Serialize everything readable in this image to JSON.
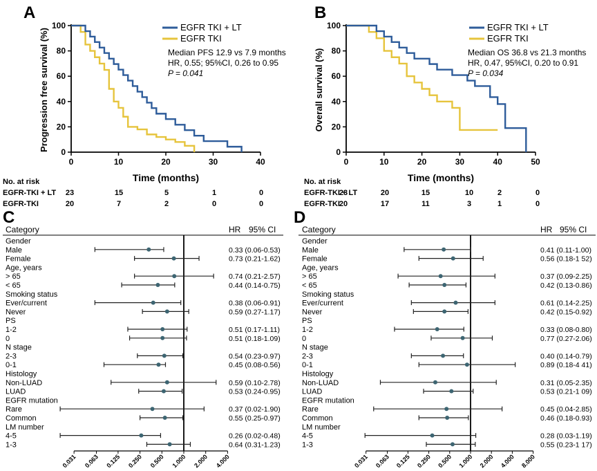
{
  "colors": {
    "lt": "#2e5c9a",
    "tki": "#e6c43c",
    "dot": "#3d6572",
    "axis": "#000000"
  },
  "panels": {
    "A": {
      "label": "A",
      "ylabel": "Progression free survival (%)",
      "xlabel": "Time (months)",
      "legend": [
        "EGFR TKI + LT",
        "EGFR TKI"
      ],
      "annotation": [
        "Median PFS 12.9 vs 7.9 months",
        "HR, 0.55; 95%CI, 0.26 to 0.95",
        "P = 0.041"
      ],
      "xticks": [
        "0",
        "10",
        "20",
        "30",
        "40"
      ],
      "yticks": [
        "0",
        "20",
        "40",
        "60",
        "80",
        "100"
      ],
      "risk_title": "No. at risk",
      "risk_rows": [
        {
          "label": "EGFR-TKI + LT",
          "values": [
            "23",
            "15",
            "5",
            "1",
            "0"
          ]
        },
        {
          "label": "EGFR-TKI",
          "values": [
            "20",
            "7",
            "2",
            "0",
            "0"
          ]
        }
      ]
    },
    "B": {
      "label": "B",
      "ylabel": "Overall survival (%)",
      "xlabel": "Time (months)",
      "legend": [
        "EGFR TKI + LT",
        "EGFR TKI"
      ],
      "annotation": [
        "Median OS 36.8 vs 21.3 months",
        "HR, 0.47, 95%CI, 0.20 to 0.91",
        "P = 0.034"
      ],
      "xticks": [
        "0",
        "10",
        "20",
        "30",
        "40",
        "50"
      ],
      "yticks": [
        "0",
        "20",
        "40",
        "60",
        "80",
        "100"
      ],
      "risk_title": "No. at risk",
      "risk_rows": [
        {
          "label": "EGFR-TKI + LT",
          "values": [
            "23",
            "20",
            "15",
            "10",
            "2",
            "0"
          ]
        },
        {
          "label": "EGFR-TKI",
          "values": [
            "20",
            "17",
            "11",
            "3",
            "1",
            "0"
          ]
        }
      ]
    },
    "C": {
      "label": "C",
      "header": {
        "category": "Category",
        "hr": "HR",
        "ci": "95% CI"
      }
    },
    "D": {
      "label": "D",
      "header": {
        "category": "Category",
        "hr": "HR",
        "ci": "95% CI"
      }
    }
  },
  "chart_data": [
    {
      "panel": "A",
      "type": "line",
      "xlim": [
        0,
        40
      ],
      "ylim": [
        0,
        100
      ],
      "series": [
        {
          "name": "EGFR TKI + LT",
          "color_key": "lt",
          "x": [
            0,
            2,
            3,
            4,
            5,
            6,
            7,
            8,
            9,
            10,
            11,
            12,
            13,
            14,
            15,
            16,
            17,
            18,
            20,
            22,
            24,
            26,
            28,
            30,
            33,
            36
          ],
          "y": [
            100,
            100,
            95.6,
            91.3,
            87,
            82.6,
            78.3,
            73.9,
            69.6,
            65.2,
            60.9,
            56.5,
            52.2,
            47.8,
            43.5,
            39.1,
            34.8,
            30.4,
            26.1,
            21.7,
            17.4,
            13,
            8.7,
            8.7,
            4.3,
            0
          ]
        },
        {
          "name": "EGFR TKI",
          "color_key": "tki",
          "x": [
            0,
            2,
            3,
            4,
            5,
            6,
            7,
            8,
            9,
            10,
            11,
            12,
            14,
            16,
            18,
            20,
            22,
            24,
            26
          ],
          "y": [
            100,
            95,
            85,
            80,
            75,
            70,
            65,
            50,
            40,
            35,
            28,
            20,
            18,
            14,
            12,
            10,
            8,
            5,
            0
          ]
        }
      ]
    },
    {
      "panel": "B",
      "type": "line",
      "xlim": [
        0,
        50
      ],
      "ylim": [
        0,
        100
      ],
      "series": [
        {
          "name": "EGFR TKI + LT",
          "color_key": "lt",
          "x": [
            0,
            5,
            8,
            10,
            12,
            14,
            16,
            18,
            20,
            22,
            24,
            26,
            28,
            30,
            32,
            34,
            36,
            38,
            40,
            42,
            47,
            47.5
          ],
          "y": [
            100,
            100,
            95.6,
            91.3,
            87,
            82.6,
            78.3,
            73.9,
            73.9,
            69.6,
            65.2,
            65.2,
            60.9,
            60.9,
            56.5,
            52.2,
            52.2,
            43.5,
            38,
            19,
            19,
            0
          ]
        },
        {
          "name": "EGFR TKI",
          "color_key": "tki",
          "x": [
            0,
            4,
            6,
            8,
            10,
            12,
            14,
            16,
            18,
            20,
            22,
            24,
            26,
            28,
            30,
            32,
            35,
            40
          ],
          "y": [
            100,
            100,
            95,
            90,
            80,
            75,
            70,
            60,
            55,
            50,
            45,
            40,
            40,
            35,
            17.5,
            17.5,
            17.5,
            17.5
          ]
        }
      ]
    },
    {
      "panel": "C",
      "type": "forest",
      "xscale": "log2",
      "xticks": [
        "0.031",
        "0.063",
        "0.125",
        "0.250",
        "0.500",
        "1.000",
        "2.000",
        "4.000"
      ],
      "rows": [
        {
          "label": "Gender",
          "header": true
        },
        {
          "label": "Male",
          "hr": 0.33,
          "lo": 0.06,
          "hi": 0.53,
          "text": "0.33  (0.06-0.53)"
        },
        {
          "label": "Female",
          "hr": 0.73,
          "lo": 0.21,
          "hi": 1.62,
          "text": "0.73  (0.21-1.62)"
        },
        {
          "label": "Age, years",
          "header": true
        },
        {
          "label": "> 65",
          "hr": 0.74,
          "lo": 0.21,
          "hi": 2.57,
          "text": "0.74  (0.21-2.57)"
        },
        {
          "label": "< 65",
          "hr": 0.44,
          "lo": 0.14,
          "hi": 0.75,
          "text": "0.44  (0.14-0.75)"
        },
        {
          "label": "Smoking status",
          "header": true
        },
        {
          "label": "Ever/current",
          "hr": 0.38,
          "lo": 0.06,
          "hi": 0.91,
          "text": "0.38  (0.06-0.91)"
        },
        {
          "label": "Never",
          "hr": 0.59,
          "lo": 0.27,
          "hi": 1.17,
          "text": "0.59  (0.27-1.17)"
        },
        {
          "label": "PS",
          "header": true
        },
        {
          "label": "1-2",
          "hr": 0.51,
          "lo": 0.17,
          "hi": 1.11,
          "text": "0.51  (0.17-1.11)"
        },
        {
          "label": "0",
          "hr": 0.51,
          "lo": 0.18,
          "hi": 1.09,
          "text": "0.51  (0.18-1.09)"
        },
        {
          "label": "N stage",
          "header": true
        },
        {
          "label": "2-3",
          "hr": 0.54,
          "lo": 0.23,
          "hi": 0.97,
          "text": "0.54  (0.23-0.97)"
        },
        {
          "label": "0-1",
          "hr": 0.45,
          "lo": 0.08,
          "hi": 0.56,
          "text": "0.45  (0.08-0.56)"
        },
        {
          "label": "Histology",
          "header": true
        },
        {
          "label": "Non-LUAD",
          "hr": 0.59,
          "lo": 0.1,
          "hi": 2.78,
          "text": "0.59  (0.10-2.78)"
        },
        {
          "label": "LUAD",
          "hr": 0.53,
          "lo": 0.24,
          "hi": 0.95,
          "text": "0.53  (0.24-0.95)"
        },
        {
          "label": "EGFR mutation",
          "header": true
        },
        {
          "label": "Rare",
          "hr": 0.37,
          "lo": 0.02,
          "hi": 1.9,
          "text": "0.37  (0.02-1.90)"
        },
        {
          "label": "Common",
          "hr": 0.55,
          "lo": 0.25,
          "hi": 0.97,
          "text": "0.55  (0.25-0.97)"
        },
        {
          "label": "LM number",
          "header": true
        },
        {
          "label": "4-5",
          "hr": 0.26,
          "lo": 0.02,
          "hi": 0.48,
          "text": "0.26  (0.02-0.48)"
        },
        {
          "label": "1-3",
          "hr": 0.64,
          "lo": 0.31,
          "hi": 1.23,
          "text": "0.64  (0.31-1.23)"
        }
      ]
    },
    {
      "panel": "D",
      "type": "forest",
      "xscale": "log2",
      "xticks": [
        "0.031",
        "0.063",
        "0.125",
        "0.250",
        "0.500",
        "1.000",
        "2.000",
        "4.000",
        "8.000"
      ],
      "rows": [
        {
          "label": "Gender",
          "header": true
        },
        {
          "label": "Male",
          "hr": 0.41,
          "lo": 0.11,
          "hi": 1.0,
          "text": "0.41  (0.11-1.00)"
        },
        {
          "label": "Female",
          "hr": 0.56,
          "lo": 0.18,
          "hi": 1.52,
          "text": "0.56  (0.18-1 52)"
        },
        {
          "label": "Age, years",
          "header": true
        },
        {
          "label": "> 65",
          "hr": 0.37,
          "lo": 0.09,
          "hi": 2.25,
          "text": "0.37  (0.09-2.25)"
        },
        {
          "label": "< 65",
          "hr": 0.42,
          "lo": 0.13,
          "hi": 0.86,
          "text": "0.42  (0.13-0.86)"
        },
        {
          "label": "Smoking status",
          "header": true
        },
        {
          "label": "Ever/current",
          "hr": 0.61,
          "lo": 0.14,
          "hi": 2.25,
          "text": "0.61  (0.14-2.25)"
        },
        {
          "label": "Never",
          "hr": 0.42,
          "lo": 0.15,
          "hi": 0.92,
          "text": "0.42  (0.15-0.92)"
        },
        {
          "label": "PS",
          "header": true
        },
        {
          "label": "1-2",
          "hr": 0.33,
          "lo": 0.08,
          "hi": 0.8,
          "text": "0.33  (0.08-0.80)"
        },
        {
          "label": "0",
          "hr": 0.77,
          "lo": 0.27,
          "hi": 2.06,
          "text": "0.77  (0.27-2.06)"
        },
        {
          "label": "N stage",
          "header": true
        },
        {
          "label": "2-3",
          "hr": 0.4,
          "lo": 0.14,
          "hi": 0.79,
          "text": "0.40  (0.14-0.79)"
        },
        {
          "label": "0-1",
          "hr": 0.89,
          "lo": 0.18,
          "hi": 4.41,
          "text": "0.89  (0.18-4 41)"
        },
        {
          "label": "Histology",
          "header": true
        },
        {
          "label": "Non-LUAD",
          "hr": 0.31,
          "lo": 0.05,
          "hi": 2.35,
          "text": "0.31  (0.05-2.35)"
        },
        {
          "label": "LUAD",
          "hr": 0.53,
          "lo": 0.21,
          "hi": 1.09,
          "text": "0.53  (0.21-1 09)"
        },
        {
          "label": "EGFR mutation",
          "header": true
        },
        {
          "label": "Rare",
          "hr": 0.45,
          "lo": 0.04,
          "hi": 2.85,
          "text": "0.45  (0.04-2.85)"
        },
        {
          "label": "Common",
          "hr": 0.46,
          "lo": 0.18,
          "hi": 0.93,
          "text": "0.46  (0.18-0.93)"
        },
        {
          "label": "LM number",
          "header": true
        },
        {
          "label": "4-5",
          "hr": 0.28,
          "lo": 0.03,
          "hi": 1.19,
          "text": "0.28  (0.03-1.19)"
        },
        {
          "label": "1-3",
          "hr": 0.55,
          "lo": 0.23,
          "hi": 1.17,
          "text": "0.55  (0.23-1 17)"
        }
      ]
    }
  ]
}
